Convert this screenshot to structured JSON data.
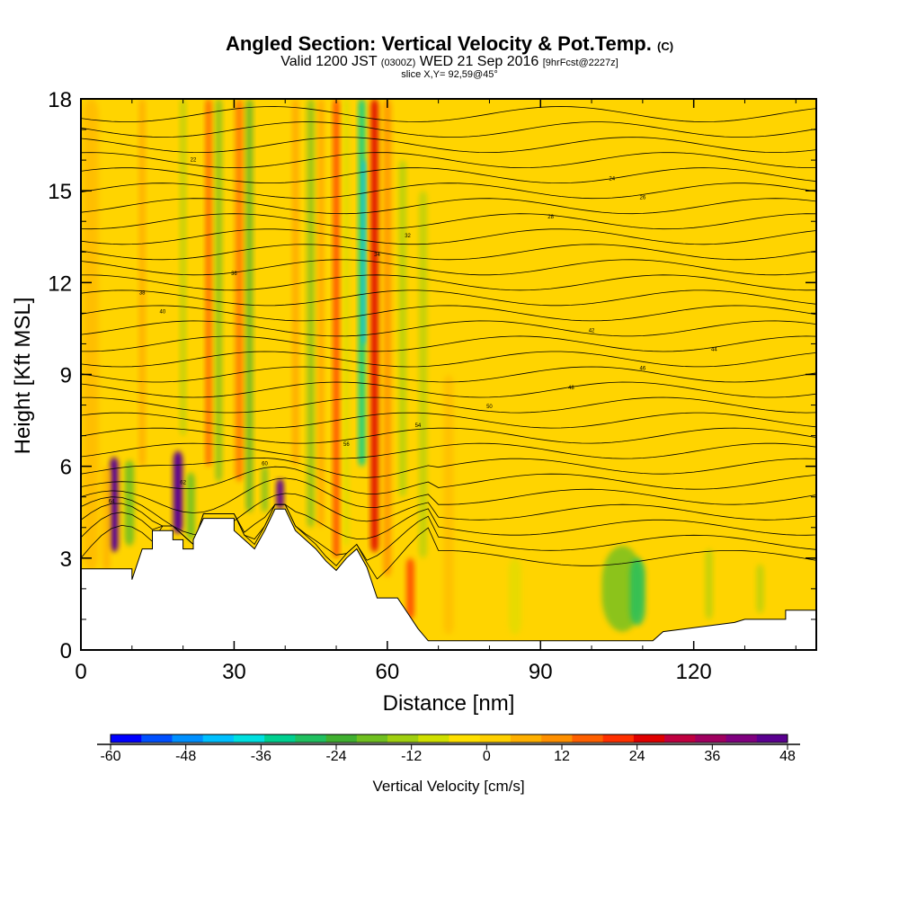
{
  "title": {
    "main": "Angled Section: Vertical Velocity & Pot.Temp.",
    "main_unit": "(C)",
    "valid_prefix": "Valid 1200 JST",
    "valid_z": "(0300Z)",
    "valid_date": "WED 21 Sep 2016",
    "forecast": "[9hrFcst@2227z]",
    "slice": "slice X,Y= 92,59@45°"
  },
  "chart_data": {
    "type": "heatmap",
    "xlabel": "Distance [nm]",
    "ylabel": "Height [Kft MSL]",
    "xlim": [
      0,
      144
    ],
    "ylim": [
      0,
      18
    ],
    "x_ticks": [
      0,
      30,
      60,
      90,
      120
    ],
    "y_ticks": [
      0,
      3,
      6,
      9,
      12,
      15,
      18
    ],
    "colorbar": {
      "label": "Vertical Velocity [cm/s]",
      "min": -60,
      "max": 48,
      "tick_labels": [
        -60,
        -48,
        -36,
        -24,
        -12,
        0,
        12,
        24,
        36,
        48
      ],
      "colors": [
        "#0000ff",
        "#0050ff",
        "#0090ff",
        "#00c0ff",
        "#00e0e0",
        "#00d090",
        "#20c060",
        "#40b030",
        "#70c020",
        "#a0d010",
        "#d0e000",
        "#ffe000",
        "#ffd000",
        "#ffb000",
        "#ff9000",
        "#ff6000",
        "#ff3000",
        "#e00000",
        "#c00040",
        "#a00060",
        "#800080",
        "#5a0090"
      ]
    },
    "terrain_kft": [
      [
        0,
        2.65
      ],
      [
        10,
        2.65
      ],
      [
        10,
        2.3
      ],
      [
        12,
        3.3
      ],
      [
        14,
        3.3
      ],
      [
        14,
        3.9
      ],
      [
        18,
        3.9
      ],
      [
        18,
        3.6
      ],
      [
        20,
        3.6
      ],
      [
        20,
        3.3
      ],
      [
        22,
        3.3
      ],
      [
        22,
        3.6
      ],
      [
        24,
        4.3
      ],
      [
        30,
        4.3
      ],
      [
        30,
        3.9
      ],
      [
        32,
        3.6
      ],
      [
        34,
        3.3
      ],
      [
        36,
        3.9
      ],
      [
        38,
        4.6
      ],
      [
        40,
        4.6
      ],
      [
        42,
        3.9
      ],
      [
        44,
        3.6
      ],
      [
        46,
        3.3
      ],
      [
        48,
        2.9
      ],
      [
        50,
        2.6
      ],
      [
        52,
        3.0
      ],
      [
        54,
        3.3
      ],
      [
        56,
        2.7
      ],
      [
        58,
        1.7
      ],
      [
        62,
        1.7
      ],
      [
        64,
        1.2
      ],
      [
        66,
        0.7
      ],
      [
        68,
        0.3
      ],
      [
        112,
        0.3
      ],
      [
        114,
        0.6
      ],
      [
        128,
        0.9
      ],
      [
        130,
        1.0
      ],
      [
        138,
        1.0
      ],
      [
        138,
        1.3
      ],
      [
        144,
        1.3
      ]
    ],
    "potential_temperature_levels_C": [
      24,
      26,
      28,
      30,
      32,
      34,
      36,
      38,
      40,
      42,
      44,
      46,
      48,
      50,
      52,
      54,
      56,
      58,
      60,
      62,
      64,
      66,
      68,
      70
    ],
    "contour_label_texts": [
      "64",
      "62",
      "60",
      "56",
      "54",
      "50",
      "48",
      "46",
      "44",
      "42",
      "40",
      "38",
      "36",
      "34",
      "32",
      "28",
      "26",
      "24",
      "22"
    ]
  }
}
